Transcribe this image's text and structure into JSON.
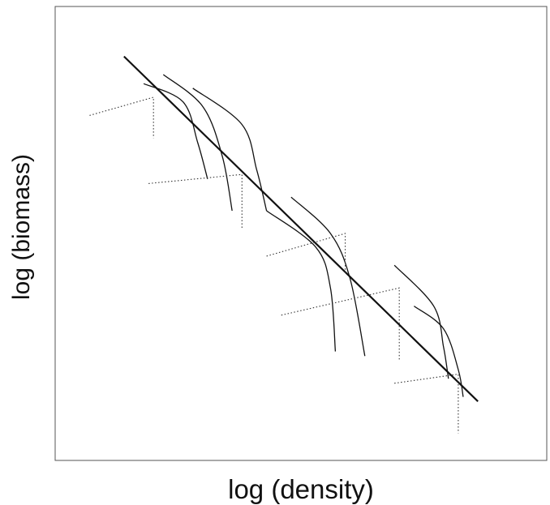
{
  "chart_data": {
    "type": "line",
    "title": "",
    "xlabel": "log (density)",
    "ylabel": "log (biomass)",
    "xlim": [
      0,
      10
    ],
    "ylim": [
      0,
      10
    ],
    "grid": false,
    "legend": "none",
    "ticks": "none",
    "series": [
      {
        "kind": "regression",
        "x": [
          1.4,
          8.6
        ],
        "y": [
          8.9,
          1.3
        ]
      },
      {
        "kind": "trajectory",
        "x": [
          1.8,
          2.6,
          2.9,
          3.1
        ],
        "y": [
          8.3,
          7.9,
          7.0,
          6.2
        ]
      },
      {
        "kind": "trajectory",
        "x": [
          2.2,
          3.0,
          3.4,
          3.6
        ],
        "y": [
          8.5,
          7.8,
          6.7,
          5.5
        ]
      },
      {
        "kind": "trajectory",
        "x": [
          2.8,
          3.8,
          4.1,
          4.3
        ],
        "y": [
          8.2,
          7.4,
          6.4,
          5.5
        ]
      },
      {
        "kind": "trajectory",
        "x": [
          4.3,
          5.3,
          5.6,
          5.7
        ],
        "y": [
          5.5,
          4.7,
          3.8,
          2.4
        ]
      },
      {
        "kind": "trajectory",
        "x": [
          4.8,
          5.6,
          6.0,
          6.3
        ],
        "y": [
          5.8,
          5.0,
          4.0,
          2.3
        ]
      },
      {
        "kind": "trajectory",
        "x": [
          6.9,
          7.7,
          7.9,
          8.0
        ],
        "y": [
          4.3,
          3.4,
          2.5,
          1.8
        ]
      },
      {
        "kind": "trajectory",
        "x": [
          7.3,
          7.9,
          8.2,
          8.3
        ],
        "y": [
          3.4,
          2.9,
          2.0,
          1.4
        ]
      },
      {
        "kind": "staircase",
        "x": [
          0.7,
          2.0,
          2.0
        ],
        "y": [
          7.6,
          8.0,
          7.1
        ]
      },
      {
        "kind": "staircase",
        "x": [
          1.9,
          3.8,
          3.8
        ],
        "y": [
          6.1,
          6.3,
          5.1
        ]
      },
      {
        "kind": "staircase",
        "x": [
          4.3,
          5.9,
          5.9
        ],
        "y": [
          4.5,
          5.0,
          4.1
        ]
      },
      {
        "kind": "staircase",
        "x": [
          4.6,
          7.0,
          7.0
        ],
        "y": [
          3.2,
          3.8,
          2.2
        ]
      },
      {
        "kind": "staircase",
        "x": [
          6.9,
          8.2,
          8.2
        ],
        "y": [
          1.7,
          1.9,
          0.6
        ]
      }
    ]
  }
}
